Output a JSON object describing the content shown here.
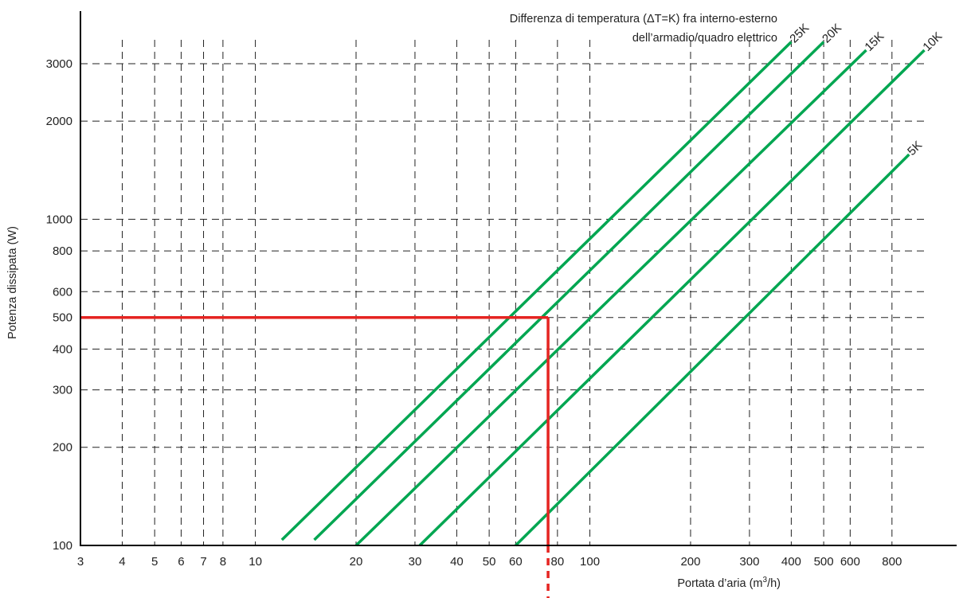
{
  "chart_data": {
    "type": "line",
    "xscale": "log",
    "yscale": "log",
    "xlim": [
      3,
      1000
    ],
    "ylim": [
      100,
      4000
    ],
    "xlabel_main": "Portata d’aria (m",
    "xlabel_sup": "3",
    "xlabel_end": "/h)",
    "ylabel": "Potenza dissipata (W)",
    "annotation_line1": "Differenza di temperatura (ΔT=K) fra interno-esterno",
    "annotation_line2": "dell’armadio/quadro elettrico",
    "x_ticks": [
      {
        "value": 3,
        "label": "3"
      },
      {
        "value": 4,
        "label": "4"
      },
      {
        "value": 5,
        "label": "5"
      },
      {
        "value": 6,
        "label": "6"
      },
      {
        "value": 7,
        "label": "7"
      },
      {
        "value": 8,
        "label": "8"
      },
      {
        "value": 10,
        "label": "10"
      },
      {
        "value": 20,
        "label": "20"
      },
      {
        "value": 30,
        "label": "30"
      },
      {
        "value": 40,
        "label": "40"
      },
      {
        "value": 50,
        "label": "50"
      },
      {
        "value": 60,
        "label": "60"
      },
      {
        "value": 80,
        "label": "80"
      },
      {
        "value": 100,
        "label": "100"
      },
      {
        "value": 200,
        "label": "200"
      },
      {
        "value": 300,
        "label": "300"
      },
      {
        "value": 400,
        "label": "400"
      },
      {
        "value": 500,
        "label": "500"
      },
      {
        "value": 600,
        "label": "600"
      },
      {
        "value": 800,
        "label": "800"
      }
    ],
    "y_ticks": [
      {
        "value": 100,
        "label": "100"
      },
      {
        "value": 200,
        "label": "200"
      },
      {
        "value": 300,
        "label": "300"
      },
      {
        "value": 400,
        "label": "400"
      },
      {
        "value": 500,
        "label": "500"
      },
      {
        "value": 600,
        "label": "600"
      },
      {
        "value": 800,
        "label": "800"
      },
      {
        "value": 1000,
        "label": "1000"
      },
      {
        "value": 2000,
        "label": "2000"
      },
      {
        "value": 3000,
        "label": "3000"
      }
    ],
    "grid": true,
    "series": [
      {
        "name": "25K",
        "color": "#00a651",
        "x": [
          12,
          400
        ],
        "y": [
          104,
          3500
        ]
      },
      {
        "name": "20K",
        "color": "#00a651",
        "x": [
          15,
          500
        ],
        "y": [
          104,
          3500
        ]
      },
      {
        "name": "15K",
        "color": "#00a651",
        "x": [
          20,
          670
        ],
        "y": [
          100,
          3300
        ]
      },
      {
        "name": "10K",
        "color": "#00a651",
        "x": [
          31,
          1000
        ],
        "y": [
          100,
          3300
        ]
      },
      {
        "name": "5K",
        "color": "#00a651",
        "x": [
          60,
          900
        ],
        "y": [
          100,
          1580
        ]
      }
    ],
    "example": {
      "color": "#e52421",
      "x": 75,
      "y": 500
    }
  }
}
